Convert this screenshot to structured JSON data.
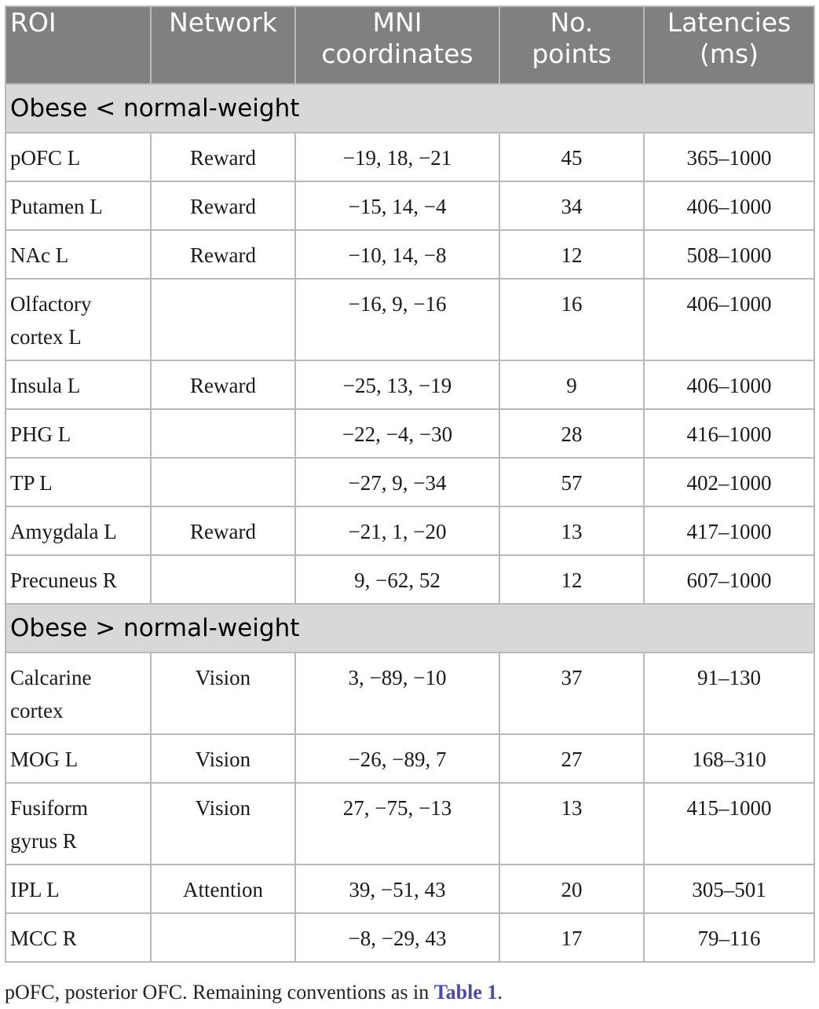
{
  "table": {
    "headers": {
      "roi": "ROI",
      "network": "Network",
      "mni_line1": "MNI",
      "mni_line2": "coordinates",
      "points_line1": "No.",
      "points_line2": "points",
      "latencies_line1": "Latencies",
      "latencies_line2": "(ms)"
    },
    "groups": [
      {
        "label": "Obese < normal-weight",
        "rows": [
          {
            "roi_line1": "pOFC L",
            "roi_line2": "",
            "network": "Reward",
            "mni": "−19, 18, −21",
            "points": "45",
            "latencies": "365–1000"
          },
          {
            "roi_line1": "Putamen L",
            "roi_line2": "",
            "network": "Reward",
            "mni": "−15, 14, −4",
            "points": "34",
            "latencies": "406–1000"
          },
          {
            "roi_line1": "NAc L",
            "roi_line2": "",
            "network": "Reward",
            "mni": "−10, 14, −8",
            "points": "12",
            "latencies": "508–1000"
          },
          {
            "roi_line1": "Olfactory",
            "roi_line2": "cortex L",
            "network": "",
            "mni": "−16, 9, −16",
            "points": "16",
            "latencies": "406–1000"
          },
          {
            "roi_line1": "Insula L",
            "roi_line2": "",
            "network": "Reward",
            "mni": "−25, 13, −19",
            "points": "9",
            "latencies": "406–1000"
          },
          {
            "roi_line1": "PHG L",
            "roi_line2": "",
            "network": "",
            "mni": "−22, −4, −30",
            "points": "28",
            "latencies": "416–1000"
          },
          {
            "roi_line1": "TP L",
            "roi_line2": "",
            "network": "",
            "mni": "−27, 9, −34",
            "points": "57",
            "latencies": "402–1000"
          },
          {
            "roi_line1": "Amygdala L",
            "roi_line2": "",
            "network": "Reward",
            "mni": "−21, 1, −20",
            "points": "13",
            "latencies": "417–1000"
          },
          {
            "roi_line1": "Precuneus R",
            "roi_line2": "",
            "network": "",
            "mni": "9, −62, 52",
            "points": "12",
            "latencies": "607–1000"
          }
        ]
      },
      {
        "label": "Obese > normal-weight",
        "rows": [
          {
            "roi_line1": "Calcarine",
            "roi_line2": "cortex",
            "network": "Vision",
            "mni": "3, −89, −10",
            "points": "37",
            "latencies": "91–130"
          },
          {
            "roi_line1": "MOG L",
            "roi_line2": "",
            "network": "Vision",
            "mni": "−26, −89, 7",
            "points": "27",
            "latencies": "168–310"
          },
          {
            "roi_line1": "Fusiform",
            "roi_line2": "gyrus R",
            "network": "Vision",
            "mni": "27, −75, −13",
            "points": "13",
            "latencies": "415–1000"
          },
          {
            "roi_line1": "IPL L",
            "roi_line2": "",
            "network": "Attention",
            "mni": "39, −51, 43",
            "points": "20",
            "latencies": "305–501"
          },
          {
            "roi_line1": "MCC R",
            "roi_line2": "",
            "network": "",
            "mni": "−8, −29, 43",
            "points": "17",
            "latencies": "79–116"
          }
        ]
      }
    ]
  },
  "caption": {
    "text_before": "pOFC, posterior OFC. Remaining conventions as in ",
    "link_text": "Table 1",
    "text_after": "."
  },
  "colors": {
    "header_bg": "#808080",
    "group_bg": "#d8d8d8",
    "border": "#b9b9b9",
    "link": "#4b4ba3"
  }
}
